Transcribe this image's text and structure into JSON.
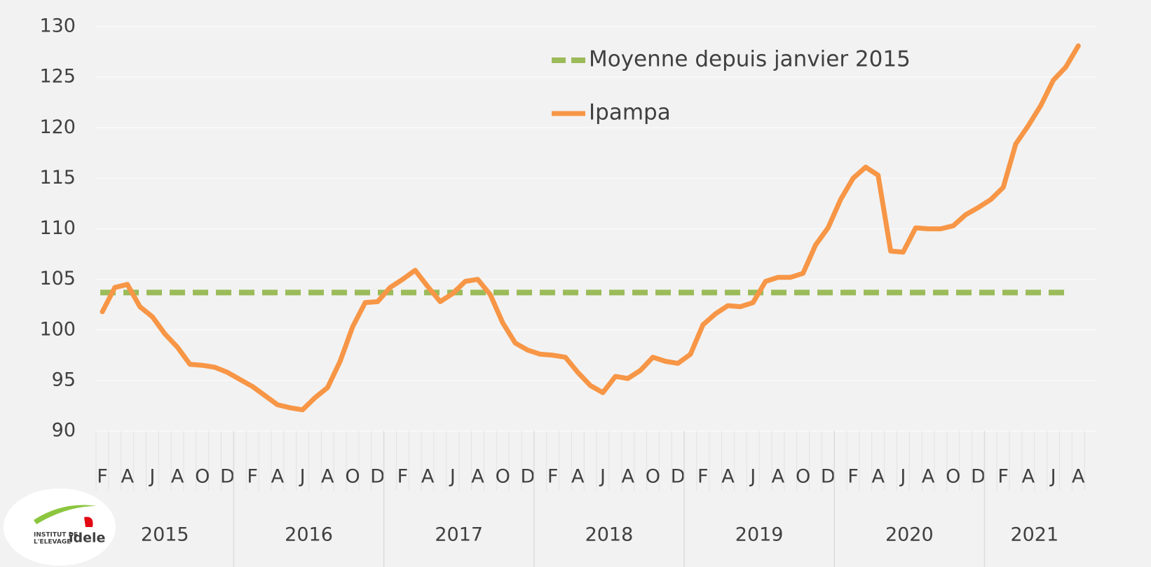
{
  "chart_data": {
    "type": "line",
    "categories": [
      "F",
      null,
      "A",
      null,
      "J",
      null,
      "A",
      null,
      "O",
      null,
      "D",
      null,
      "F",
      null,
      "A",
      null,
      "J",
      null,
      "A",
      null,
      "O",
      null,
      "D",
      null,
      "F",
      null,
      "A",
      null,
      "J",
      null,
      "A",
      null,
      "O",
      null,
      "D",
      null,
      "F",
      null,
      "A",
      null,
      "J",
      null,
      "A",
      null,
      "O",
      null,
      "D",
      null,
      "F",
      null,
      "A",
      null,
      "J",
      null,
      "A",
      null,
      "O",
      null,
      "D",
      null,
      "F",
      null,
      "A",
      null,
      "J",
      null,
      "A",
      null,
      "O",
      null,
      "D",
      null,
      "F",
      null,
      "A",
      null,
      "J",
      null,
      "A"
    ],
    "years": [
      "2015",
      "2016",
      "2017",
      "2018",
      "2019",
      "2020",
      "2021"
    ],
    "series": [
      {
        "name": "Ipampa",
        "color": "#f79646",
        "values": [
          101.8,
          104.2,
          104.5,
          102.3,
          101.3,
          99.6,
          98.3,
          96.6,
          96.5,
          96.3,
          95.8,
          95.1,
          94.4,
          93.5,
          92.6,
          92.3,
          92.1,
          93.3,
          94.3,
          96.9,
          100.3,
          102.7,
          102.8,
          104.2,
          105.0,
          105.9,
          104.3,
          102.8,
          103.6,
          104.8,
          105.0,
          103.5,
          100.7,
          98.7,
          98.0,
          97.6,
          97.5,
          97.3,
          95.8,
          94.5,
          93.8,
          95.4,
          95.2,
          96.0,
          97.3,
          96.9,
          96.7,
          97.6,
          100.5,
          101.6,
          102.4,
          102.3,
          102.7,
          104.8,
          105.2,
          105.2,
          105.6,
          108.4,
          110.1,
          112.9,
          115.0,
          116.1,
          115.3,
          107.8,
          107.7,
          110.1,
          110.0,
          110.0,
          110.3,
          111.4,
          112.1,
          112.9,
          114.1,
          118.4,
          120.2,
          122.2,
          124.7,
          126.0,
          128.1
        ]
      }
    ],
    "average_line": {
      "name": "Moyenne depuis janvier 2015",
      "value": 103.7,
      "color": "#9bbb59"
    },
    "ylim": [
      90,
      130
    ],
    "yticks": [
      90,
      95,
      100,
      105,
      110,
      115,
      120,
      125,
      130
    ],
    "grid": true
  },
  "logo": {
    "line1": "INSTITUT DE",
    "line2": "L'ELEVAGE",
    "brand": "idele"
  }
}
